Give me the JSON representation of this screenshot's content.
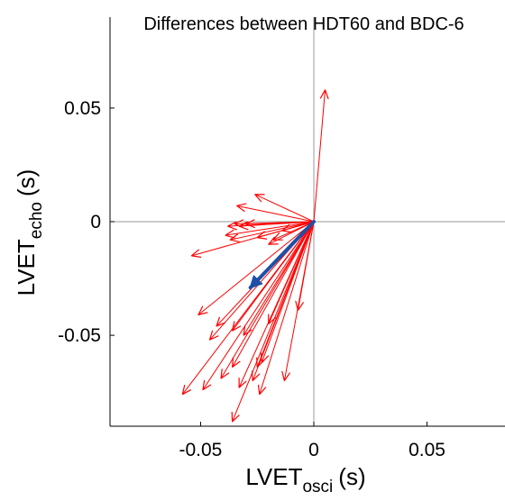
{
  "chart_data": {
    "type": "vector",
    "title": "Differences between HDT60 and BDC-6",
    "xlabel": {
      "base": "LVET",
      "sub": "osci",
      "unit": "(s)"
    },
    "ylabel": {
      "base": "LVET",
      "sub": "echo",
      "unit": "(s)"
    },
    "xlim": [
      -0.09,
      0.09
    ],
    "ylim": [
      -0.09,
      0.09
    ],
    "xticks": [
      -0.05,
      0,
      0.05
    ],
    "yticks": [
      -0.05,
      0,
      0.05
    ],
    "xtick_labels": [
      "-0.05",
      "0",
      "0.05"
    ],
    "ytick_labels": [
      "-0.05",
      "0",
      "0.05"
    ],
    "grid": false,
    "origin": [
      0,
      0
    ],
    "series": [
      {
        "color": "#ff0000",
        "vectors": [
          [
            0.005,
            0.058
          ],
          [
            -0.026,
            0.012
          ],
          [
            -0.034,
            0.007
          ],
          [
            -0.03,
            -0.001
          ],
          [
            -0.033,
            -0.002
          ],
          [
            -0.035,
            -0.001
          ],
          [
            -0.038,
            -0.002
          ],
          [
            -0.039,
            -0.006
          ],
          [
            -0.037,
            -0.008
          ],
          [
            -0.025,
            -0.007
          ],
          [
            -0.018,
            -0.008
          ],
          [
            -0.02,
            -0.01
          ],
          [
            -0.014,
            -0.004
          ],
          [
            -0.054,
            -0.015
          ],
          [
            -0.051,
            -0.041
          ],
          [
            -0.046,
            -0.052
          ],
          [
            -0.043,
            -0.046
          ],
          [
            -0.036,
            -0.048
          ],
          [
            -0.031,
            -0.05
          ],
          [
            -0.058,
            -0.076
          ],
          [
            -0.049,
            -0.074
          ],
          [
            -0.041,
            -0.069
          ],
          [
            -0.036,
            -0.064
          ],
          [
            -0.033,
            -0.073
          ],
          [
            -0.027,
            -0.07
          ],
          [
            -0.025,
            -0.064
          ],
          [
            -0.024,
            -0.076
          ],
          [
            -0.036,
            -0.088
          ],
          [
            -0.013,
            -0.07
          ],
          [
            -0.023,
            -0.062
          ],
          [
            -0.02,
            -0.045
          ],
          [
            -0.007,
            -0.039
          ]
        ]
      },
      {
        "color": "#1f4fa8",
        "vectors": [
          [
            -0.028,
            -0.029
          ]
        ]
      }
    ]
  }
}
